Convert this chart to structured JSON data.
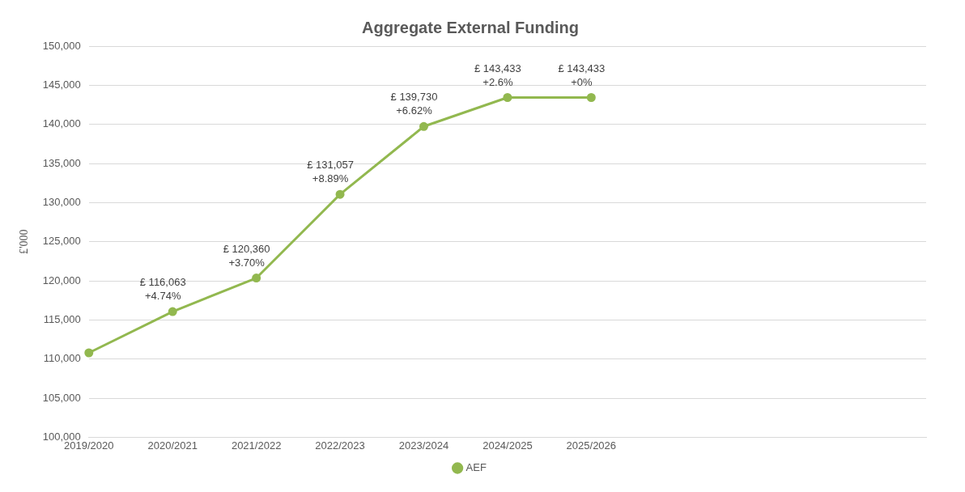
{
  "chart_data": {
    "type": "line",
    "title": "Aggregate External Funding",
    "ylabel": "£'000",
    "categories": [
      "2019/2020",
      "2020/2021",
      "2021/2022",
      "2022/2023",
      "2023/2024",
      "2024/2025",
      "2025/2026",
      null,
      null,
      null,
      null
    ],
    "series": [
      {
        "name": "AEF",
        "color": "#92b84f",
        "values": [
          110800,
          116063,
          120360,
          131057,
          139730,
          143433,
          143433,
          null,
          null,
          null,
          null
        ],
        "value_labels": [
          null,
          "£ 116,063\n+4.74%",
          "£ 120,360\n+3.70%",
          "£ 131,057\n+8.89%",
          "£ 139,730\n+6.62%",
          "£ 143,433\n+2.6%",
          "£ 143,433\n+0%",
          null,
          null,
          null,
          null
        ]
      }
    ],
    "ylim": [
      100000,
      150000
    ],
    "yticks": [
      {
        "value": 100000,
        "label": "100,000"
      },
      {
        "value": 105000,
        "label": "105,000"
      },
      {
        "value": 110000,
        "label": "110,000"
      },
      {
        "value": 115000,
        "label": "115,000"
      },
      {
        "value": 120000,
        "label": "120,000"
      },
      {
        "value": 125000,
        "label": "125,000"
      },
      {
        "value": 130000,
        "label": "130,000"
      },
      {
        "value": 135000,
        "label": "135,000"
      },
      {
        "value": 140000,
        "label": "140,000"
      },
      {
        "value": 145000,
        "label": "145,000"
      },
      {
        "value": 150000,
        "label": "150,000"
      }
    ],
    "grid": "y",
    "legend": "bottom",
    "marker": "circle",
    "line_style": "solid"
  }
}
